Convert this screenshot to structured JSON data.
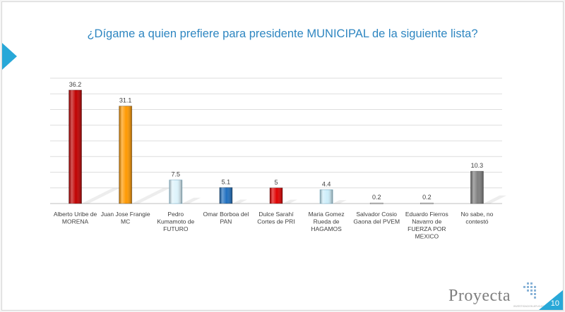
{
  "slide": {
    "title": "¿Dígame a quien prefiere para presidente MUNICIPAL de la siguiente lista?",
    "page_number": "10",
    "logo_text": "Proyecta",
    "logo_subtitle": "INVESTIGACION APLICADA",
    "accent_color": "#28a8d8"
  },
  "chart_data": {
    "type": "bar",
    "title": "",
    "xlabel": "",
    "ylabel": "",
    "ylim": [
      0,
      40
    ],
    "grid": true,
    "legend": "none",
    "categories": [
      [
        "Alberto Uribe de",
        "MORENA"
      ],
      [
        "Juan Jose Frangie",
        "MC"
      ],
      [
        "Pedro",
        "Kumamoto de",
        "FUTURO"
      ],
      [
        "Omar Borboa del",
        "PAN"
      ],
      [
        "Dulce Sarahí",
        "Cortes de PRI"
      ],
      [
        "Maria Gomez",
        "Rueda de",
        "HAGAMOS"
      ],
      [
        "Salvador Cosio",
        "Gaona del PVEM"
      ],
      [
        "Eduardo Fierros",
        "Navarro de",
        "FUERZA POR",
        "MEXICO"
      ],
      [
        "No sabe, no",
        "contestó"
      ]
    ],
    "values": [
      36.2,
      31.1,
      7.5,
      5.1,
      5,
      4.4,
      0.2,
      0.2,
      10.3
    ],
    "data_labels": [
      "36.2",
      "31.1",
      "7.5",
      "5.1",
      "5",
      "4.4",
      "0.2",
      "0.2",
      "10.3"
    ],
    "colors": [
      "#c00000",
      "#ff9900",
      "#ddf3fb",
      "#1f6fbf",
      "#e00000",
      "#cdeefa",
      "#d9d9d9",
      "#d9d9d9",
      "#7f7f7f"
    ]
  }
}
